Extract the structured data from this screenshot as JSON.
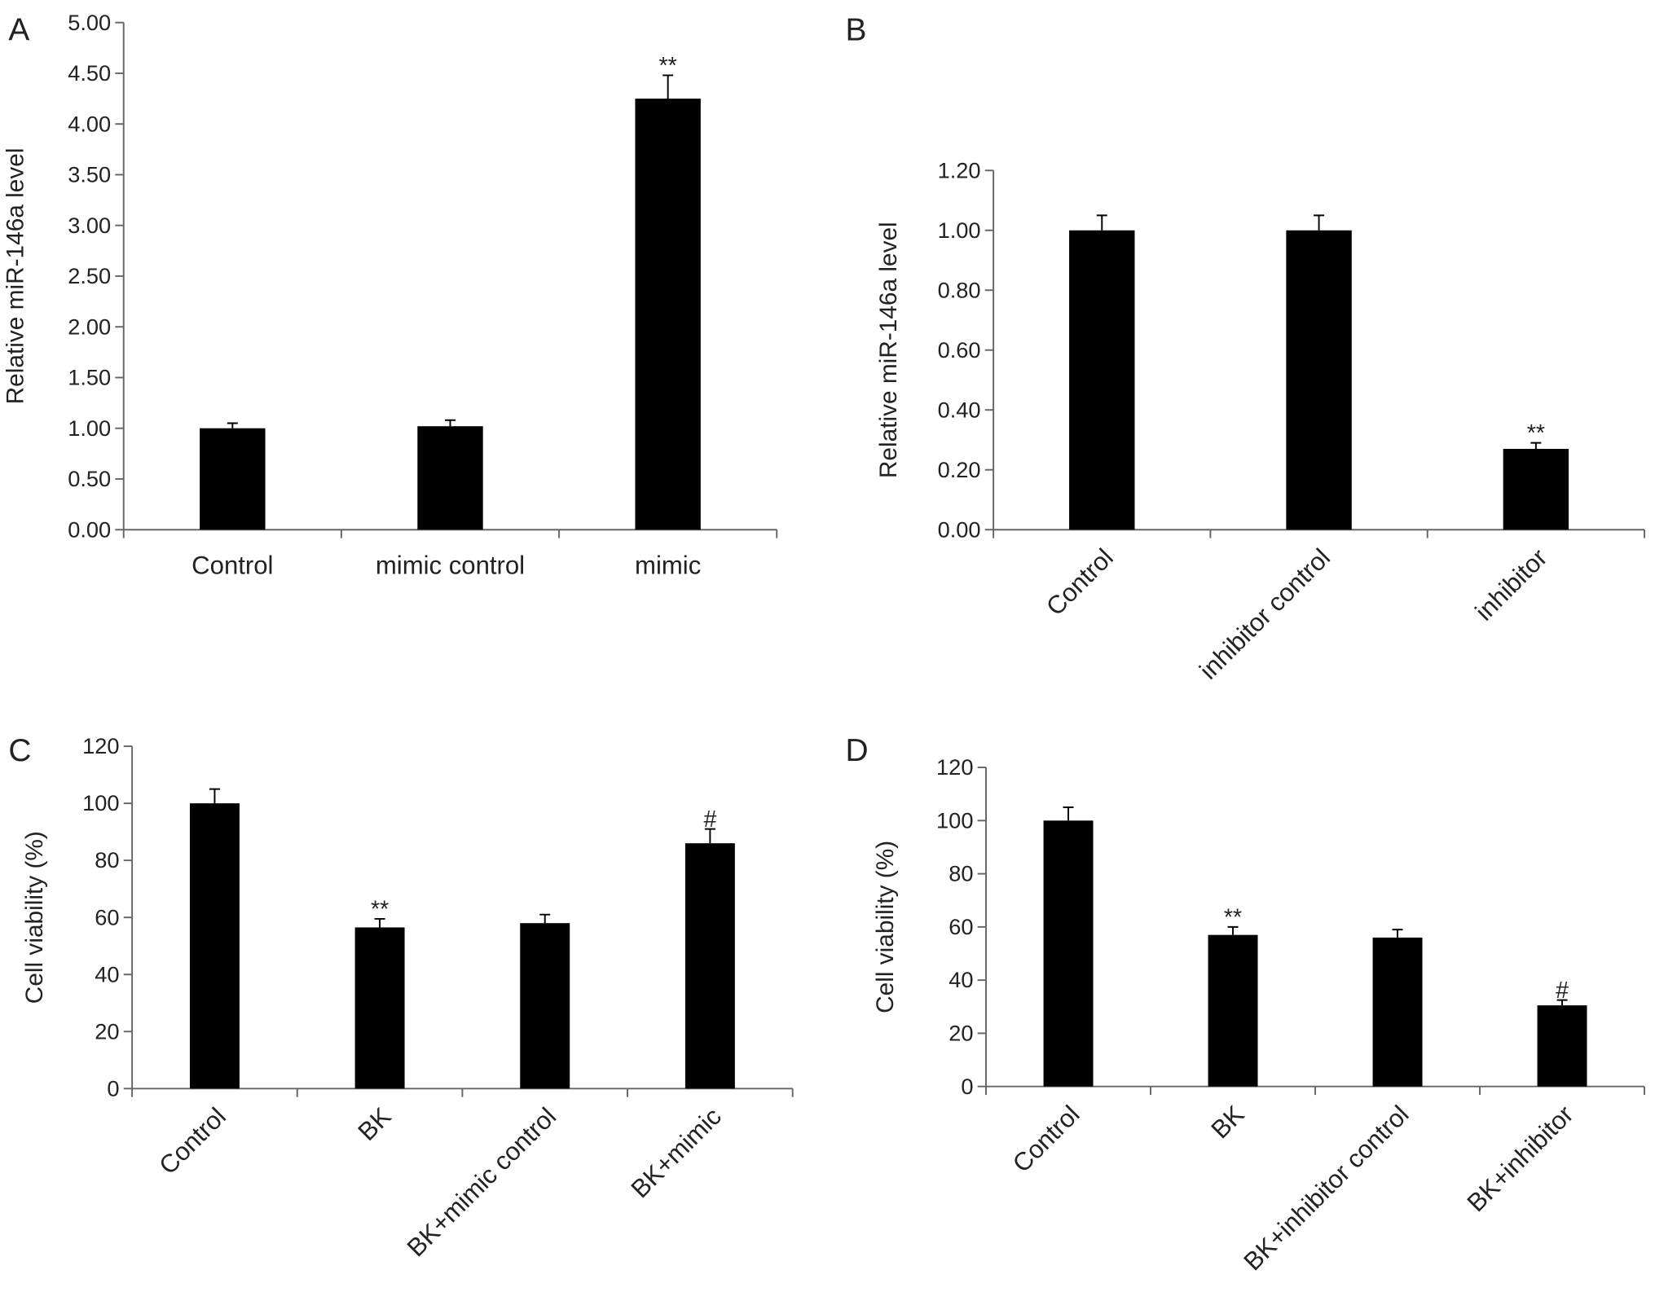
{
  "chart_data": [
    {
      "type": "bar",
      "panel": "A",
      "ylabel": "Relative miR-146a level",
      "categories": [
        "Control",
        "mimic control",
        "mimic"
      ],
      "values": [
        1.0,
        1.02,
        4.25
      ],
      "errors": [
        0.05,
        0.06,
        0.23
      ],
      "annotations": [
        null,
        null,
        "**"
      ],
      "color": "#000000",
      "ylim": [
        0,
        5
      ],
      "yticks": [
        {
          "value": 0,
          "label": "0.00"
        },
        {
          "value": 0.5,
          "label": "0.50"
        },
        {
          "value": 1,
          "label": "1.00"
        },
        {
          "value": 1.5,
          "label": "1.50"
        },
        {
          "value": 2,
          "label": "2.00"
        },
        {
          "value": 2.5,
          "label": "2.50"
        },
        {
          "value": 3,
          "label": "3.00"
        },
        {
          "value": 3.5,
          "label": "3.50"
        },
        {
          "value": 4,
          "label": "4.00"
        },
        {
          "value": 4.5,
          "label": "4.50"
        },
        {
          "value": 5,
          "label": "5.00"
        }
      ]
    },
    {
      "type": "bar",
      "panel": "B",
      "ylabel": "Relative miR-146a level",
      "categories": [
        "Control",
        "inhibitor control",
        "inhibitor"
      ],
      "values": [
        1.0,
        1.0,
        0.27
      ],
      "errors": [
        0.05,
        0.05,
        0.02
      ],
      "annotations": [
        null,
        null,
        "**"
      ],
      "color": "#000000",
      "ylim": [
        0,
        1.2
      ],
      "yticks": [
        {
          "value": 0,
          "label": "0.00"
        },
        {
          "value": 0.2,
          "label": "0.20"
        },
        {
          "value": 0.4,
          "label": "0.40"
        },
        {
          "value": 0.6,
          "label": "0.60"
        },
        {
          "value": 0.8,
          "label": "0.80"
        },
        {
          "value": 1,
          "label": "1.00"
        },
        {
          "value": 1.2,
          "label": "1.20"
        }
      ]
    },
    {
      "type": "bar",
      "panel": "C",
      "ylabel": "Cell viability (%)",
      "categories": [
        "Control",
        "BK",
        "BK+mimic control",
        "BK+mimic"
      ],
      "values": [
        100,
        56.5,
        58,
        86
      ],
      "errors": [
        5,
        3,
        3,
        5
      ],
      "annotations": [
        null,
        "**",
        null,
        "#"
      ],
      "color": "#000000",
      "ylim": [
        0,
        120
      ],
      "yticks": [
        0,
        20,
        40,
        60,
        80,
        100,
        120
      ]
    },
    {
      "type": "bar",
      "panel": "D",
      "ylabel": "Cell viability (%)",
      "categories": [
        "Control",
        "BK",
        "BK+inhibitor control",
        "BK+inhibitor"
      ],
      "values": [
        100,
        57,
        56,
        30.5
      ],
      "errors": [
        5,
        3,
        3,
        2
      ],
      "annotations": [
        null,
        "**",
        null,
        "#"
      ],
      "color": "#000000",
      "ylim": [
        0,
        120
      ],
      "yticks": [
        0,
        20,
        40,
        60,
        80,
        100,
        120
      ]
    }
  ]
}
